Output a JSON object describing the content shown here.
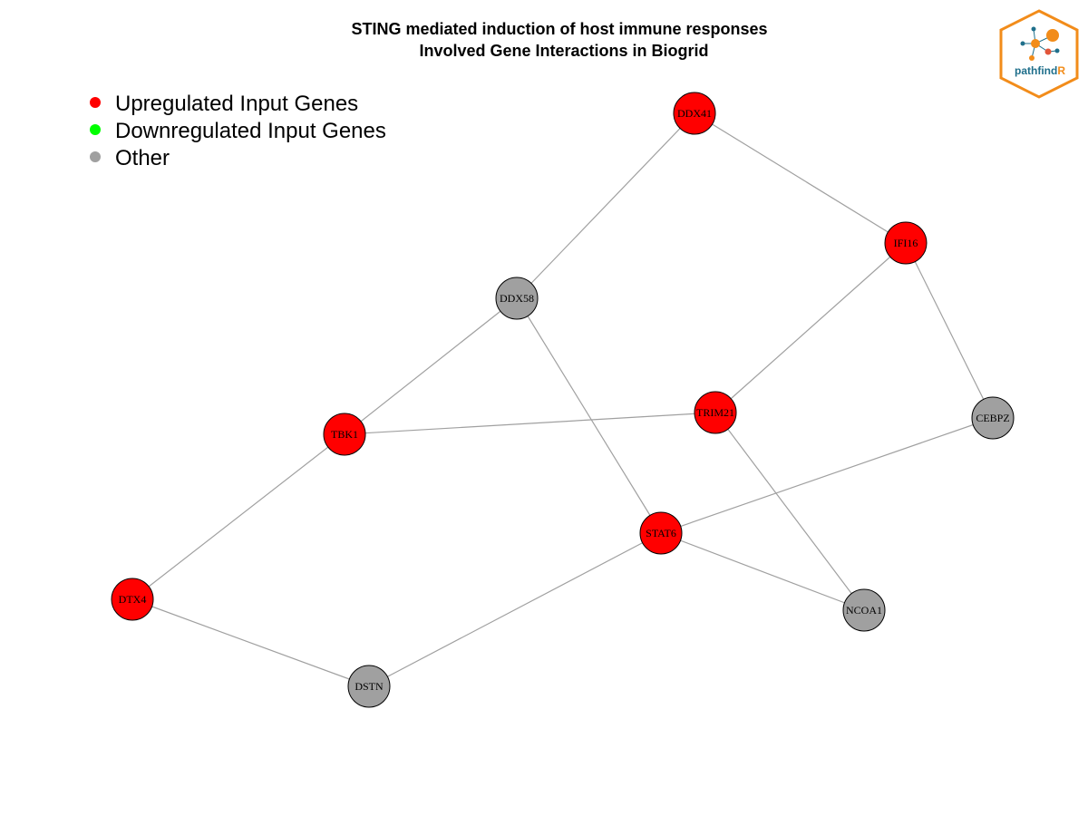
{
  "title": {
    "line1": "STING mediated induction of host immune responses",
    "line2": "Involved Gene Interactions in Biogrid"
  },
  "legend": [
    {
      "label": "Upregulated Input Genes",
      "color": "#ff0000"
    },
    {
      "label": "Downregulated Input Genes",
      "color": "#00ff00"
    },
    {
      "label": "Other",
      "color": "#a0a0a0"
    }
  ],
  "logo": {
    "text_a": "pathfind",
    "text_b": "R",
    "icon": "network-hexagon-logo"
  },
  "colors": {
    "up": "#ff0000",
    "down": "#00ff00",
    "other": "#a0a0a0",
    "edge": "#a0a0a0"
  },
  "nodes": [
    {
      "id": "DDX41",
      "type": "up"
    },
    {
      "id": "IFI16",
      "type": "up"
    },
    {
      "id": "DDX58",
      "type": "other"
    },
    {
      "id": "TRIM21",
      "type": "up"
    },
    {
      "id": "CEBPZ",
      "type": "other"
    },
    {
      "id": "TBK1",
      "type": "up"
    },
    {
      "id": "STAT6",
      "type": "up"
    },
    {
      "id": "DTX4",
      "type": "up"
    },
    {
      "id": "NCOA1",
      "type": "other"
    },
    {
      "id": "DSTN",
      "type": "other"
    }
  ],
  "edges": [
    [
      "DDX41",
      "IFI16"
    ],
    [
      "DDX41",
      "DDX58"
    ],
    [
      "IFI16",
      "TRIM21"
    ],
    [
      "IFI16",
      "CEBPZ"
    ],
    [
      "DDX58",
      "TBK1"
    ],
    [
      "DDX58",
      "STAT6"
    ],
    [
      "TBK1",
      "TRIM21"
    ],
    [
      "TBK1",
      "DTX4"
    ],
    [
      "TRIM21",
      "NCOA1"
    ],
    [
      "CEBPZ",
      "STAT6"
    ],
    [
      "STAT6",
      "NCOA1"
    ],
    [
      "STAT6",
      "DSTN"
    ],
    [
      "DTX4",
      "DSTN"
    ]
  ]
}
